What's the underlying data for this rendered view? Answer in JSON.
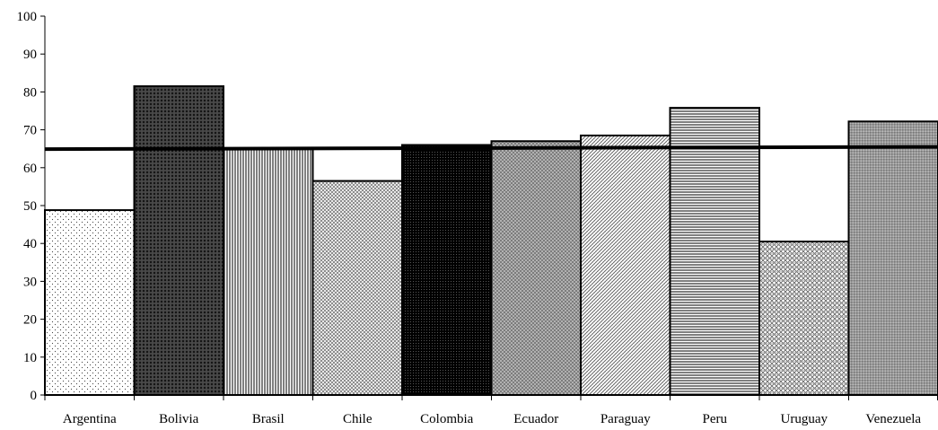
{
  "chart_data": {
    "type": "bar",
    "categories": [
      "Argentina",
      "Bolivia",
      "Brasil",
      "Chile",
      "Colombia",
      "Ecuador",
      "Paraguay",
      "Peru",
      "Uruguay",
      "Venezuela"
    ],
    "values": [
      48.8,
      81.5,
      65.0,
      56.5,
      66.0,
      67.0,
      68.5,
      75.8,
      40.5,
      72.2
    ],
    "reference_line": {
      "y_start": 64.9,
      "y_end": 65.5
    },
    "title": "",
    "xlabel": "",
    "ylabel": "",
    "ylim": [
      0,
      100
    ],
    "yticks": [
      "0",
      "10",
      "20",
      "30",
      "40",
      "50",
      "60",
      "70",
      "80",
      "90",
      "100"
    ],
    "grid": false,
    "legend": "none",
    "bar_fills": [
      "dots-sparse",
      "crosshatch-dark",
      "vertical-lines",
      "diagonal-cross",
      "dense-black",
      "diamond-grid",
      "diagonal-lines",
      "horizontal-lines",
      "wave-grid",
      "gray-grid"
    ],
    "colors": {
      "bars_outline": "#000000",
      "reference_line": "#000000",
      "background": "#ffffff"
    }
  }
}
